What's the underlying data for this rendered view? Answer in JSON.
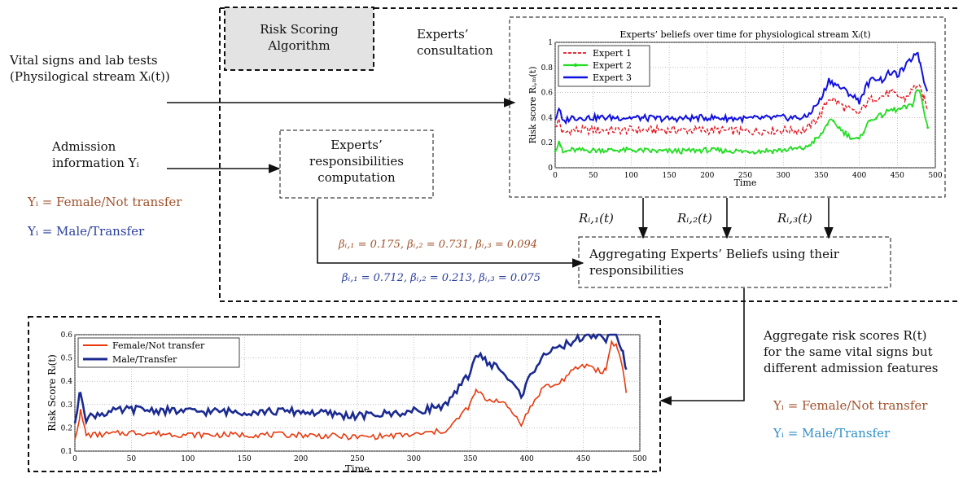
{
  "algo_box": {
    "line1": "Risk Scoring",
    "line2": "Algorithm"
  },
  "left_inputs": {
    "vital_line1": "Vital signs and lab tests",
    "vital_line2": "(Physilogical stream Xᵢ(t))",
    "admission_line1": "Admission",
    "admission_line2": "information Yᵢ",
    "y_female": "Yᵢ = Female/Not transfer",
    "y_male": "Yᵢ = Male/Transfer"
  },
  "consultation": {
    "line1": "Experts’",
    "line2": "consultation"
  },
  "responsibilities_box": {
    "line1": "Experts’",
    "line2": "responsibilities",
    "line3": "computation"
  },
  "beta_female": "βᵢ,₁ = 0.175, βᵢ,₂ = 0.731, βᵢ,₃ = 0.094",
  "beta_male": "βᵢ,₁ = 0.712, βᵢ,₂ = 0.213, βᵢ,₃ = 0.075",
  "aggregating_box": {
    "line1": "Aggregating Experts’ Beliefs using their",
    "line2": "responsibilities"
  },
  "risk_labels": [
    "Rᵢ,₁(t)",
    "Rᵢ,₂(t)",
    "Rᵢ,₃(t)"
  ],
  "right_text": {
    "line1": "Aggregate risk scores R(t)",
    "line2": "for the same vital signs but",
    "line3": "different admission features",
    "y_female": "Yᵢ = Female/Not transfer",
    "y_male": "Yᵢ = Male/Transfer"
  },
  "colors": {
    "brown": "#a0522d",
    "blue": "#2a3f9e",
    "cyan": "#2f8fc9",
    "expert1": "#e8141e",
    "expert2": "#22dd22",
    "expert3": "#1010e0",
    "female": "#e8380c",
    "male": "#1a2a90"
  },
  "chart_data": [
    {
      "type": "line",
      "title": "Experts’ beliefs over time for physiological stream Xᵢ(t)",
      "xlabel": "Time",
      "ylabel": "Risk score Rᵢ,ₘ(t)",
      "xlim": [
        0,
        500
      ],
      "ylim": [
        0,
        1
      ],
      "xticks": [
        0,
        50,
        100,
        150,
        200,
        250,
        300,
        350,
        400,
        450,
        500
      ],
      "yticks": [
        0,
        0.2,
        0.4,
        0.6,
        0.8,
        1
      ],
      "ytick_labels": [
        "0",
        "0.2",
        "0.4",
        "0.6",
        "0.8",
        "1"
      ],
      "grid": true,
      "legend": "top-left",
      "series": [
        {
          "name": "Expert 1",
          "style": "dashed",
          "x": [
            0,
            5,
            10,
            20,
            50,
            100,
            150,
            200,
            250,
            300,
            330,
            350,
            360,
            370,
            380,
            390,
            400,
            410,
            420,
            430,
            440,
            450,
            460,
            470,
            475,
            480,
            485,
            490
          ],
          "values": [
            0.33,
            0.38,
            0.27,
            0.3,
            0.3,
            0.3,
            0.3,
            0.3,
            0.29,
            0.3,
            0.3,
            0.43,
            0.56,
            0.53,
            0.48,
            0.45,
            0.43,
            0.52,
            0.56,
            0.57,
            0.6,
            0.57,
            0.55,
            0.62,
            0.66,
            0.62,
            0.55,
            0.47
          ]
        },
        {
          "name": "Expert 2",
          "style": "solid-marker",
          "x": [
            0,
            5,
            10,
            20,
            50,
            100,
            150,
            200,
            250,
            300,
            330,
            350,
            360,
            370,
            380,
            390,
            400,
            410,
            420,
            430,
            440,
            450,
            460,
            470,
            475,
            480,
            485,
            490
          ],
          "values": [
            0.13,
            0.22,
            0.12,
            0.14,
            0.14,
            0.14,
            0.13,
            0.14,
            0.13,
            0.14,
            0.16,
            0.26,
            0.38,
            0.34,
            0.28,
            0.24,
            0.22,
            0.35,
            0.4,
            0.42,
            0.46,
            0.46,
            0.48,
            0.5,
            0.62,
            0.6,
            0.45,
            0.32
          ]
        },
        {
          "name": "Expert 3",
          "style": "solid",
          "x": [
            0,
            5,
            10,
            20,
            50,
            100,
            150,
            200,
            250,
            300,
            330,
            350,
            360,
            370,
            380,
            390,
            400,
            410,
            420,
            430,
            440,
            450,
            460,
            470,
            475,
            480,
            485,
            490
          ],
          "values": [
            0.38,
            0.48,
            0.36,
            0.4,
            0.4,
            0.4,
            0.39,
            0.4,
            0.39,
            0.4,
            0.4,
            0.55,
            0.7,
            0.66,
            0.62,
            0.58,
            0.53,
            0.66,
            0.72,
            0.7,
            0.76,
            0.74,
            0.8,
            0.88,
            0.93,
            0.84,
            0.7,
            0.62
          ]
        }
      ]
    },
    {
      "type": "line",
      "xlabel": "Time",
      "ylabel": "Risk Score Rᵢ(t)",
      "xlim": [
        0,
        500
      ],
      "ylim": [
        0.1,
        0.6
      ],
      "xticks": [
        0,
        50,
        100,
        150,
        200,
        250,
        300,
        350,
        400,
        450,
        500
      ],
      "yticks": [
        0.1,
        0.2,
        0.3,
        0.4,
        0.5,
        0.6
      ],
      "ytick_labels": [
        "0.1",
        "0.2",
        "0.3",
        "0.4",
        "0.5",
        "0.6"
      ],
      "grid": true,
      "legend": "top-left",
      "series": [
        {
          "name": "Female/Not transfer",
          "x": [
            0,
            5,
            10,
            20,
            50,
            100,
            150,
            200,
            250,
            300,
            330,
            350,
            355,
            365,
            375,
            385,
            395,
            405,
            415,
            425,
            435,
            445,
            455,
            465,
            470,
            475,
            480,
            485,
            488
          ],
          "values": [
            0.15,
            0.27,
            0.17,
            0.17,
            0.18,
            0.17,
            0.17,
            0.17,
            0.16,
            0.17,
            0.19,
            0.3,
            0.36,
            0.32,
            0.32,
            0.28,
            0.22,
            0.3,
            0.38,
            0.38,
            0.42,
            0.46,
            0.47,
            0.44,
            0.45,
            0.57,
            0.55,
            0.45,
            0.35
          ]
        },
        {
          "name": "Male/Transfer",
          "x": [
            0,
            5,
            10,
            20,
            50,
            100,
            150,
            200,
            250,
            300,
            330,
            350,
            355,
            365,
            375,
            385,
            395,
            405,
            415,
            425,
            435,
            445,
            455,
            465,
            470,
            475,
            480,
            485,
            488
          ],
          "values": [
            0.22,
            0.36,
            0.24,
            0.26,
            0.28,
            0.27,
            0.27,
            0.27,
            0.25,
            0.27,
            0.3,
            0.44,
            0.52,
            0.48,
            0.46,
            0.4,
            0.34,
            0.44,
            0.52,
            0.53,
            0.56,
            0.58,
            0.6,
            0.6,
            0.58,
            0.62,
            0.6,
            0.52,
            0.45
          ]
        }
      ]
    }
  ]
}
